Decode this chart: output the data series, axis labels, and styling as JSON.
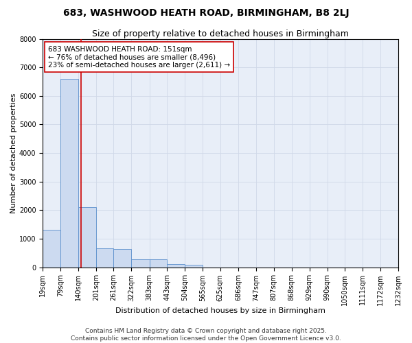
{
  "title": "683, WASHWOOD HEATH ROAD, BIRMINGHAM, B8 2LJ",
  "subtitle": "Size of property relative to detached houses in Birmingham",
  "xlabel": "Distribution of detached houses by size in Birmingham",
  "ylabel": "Number of detached properties",
  "bins": [
    19,
    79,
    140,
    201,
    261,
    322,
    383,
    443,
    504,
    565,
    625,
    686,
    747,
    807,
    868,
    929,
    990,
    1050,
    1111,
    1172,
    1232
  ],
  "counts": [
    1300,
    6600,
    2100,
    650,
    630,
    270,
    270,
    110,
    75,
    0,
    0,
    0,
    0,
    0,
    0,
    0,
    0,
    0,
    0,
    0
  ],
  "property_size": 151,
  "annotation_text": "683 WASHWOOD HEATH ROAD: 151sqm\n← 76% of detached houses are smaller (8,496)\n23% of semi-detached houses are larger (2,611) →",
  "bar_color": "#ccdaf0",
  "bar_edge_color": "#5b8fcc",
  "line_color": "#cc0000",
  "annotation_box_color": "#ffffff",
  "annotation_box_edge": "#cc0000",
  "bg_color": "#e8eef8",
  "grid_color": "#d0d8e8",
  "ylim": [
    0,
    8000
  ],
  "yticks": [
    0,
    1000,
    2000,
    3000,
    4000,
    5000,
    6000,
    7000,
    8000
  ],
  "footer_line1": "Contains HM Land Registry data © Crown copyright and database right 2025.",
  "footer_line2": "Contains public sector information licensed under the Open Government Licence v3.0.",
  "title_fontsize": 10,
  "subtitle_fontsize": 9,
  "axis_label_fontsize": 8,
  "tick_fontsize": 7,
  "annotation_fontsize": 7.5,
  "footer_fontsize": 6.5
}
